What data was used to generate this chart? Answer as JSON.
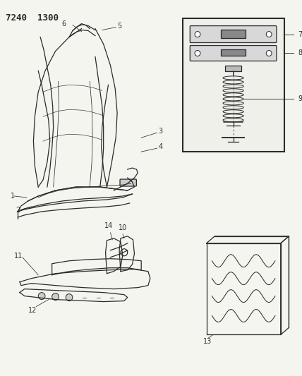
{
  "title": "7240 1300",
  "bg_color": "#f5f5f0",
  "line_color": "#2a2a2a",
  "figsize": [
    4.28,
    5.33
  ],
  "dpi": 100
}
